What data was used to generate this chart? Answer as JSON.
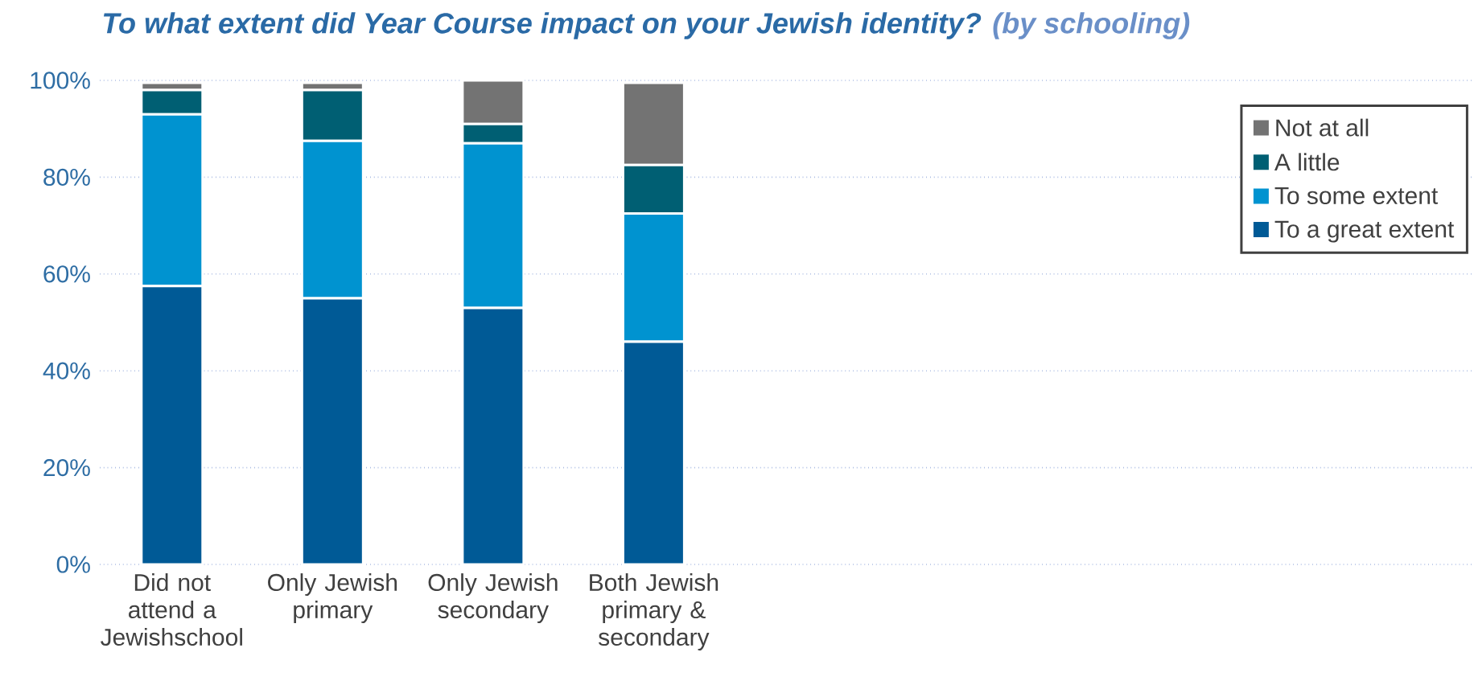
{
  "chart_data": {
    "type": "bar",
    "stacked": true,
    "title": "To what extent did Year Course impact on your Jewish identity?",
    "subtitle": "(by schooling)",
    "categories": [
      "Did not attend a Jewishschool",
      "Only Jewish primary",
      "Only Jewish secondary",
      "Both Jewish primary & secondary"
    ],
    "series": [
      {
        "name": "To a great extent",
        "color": "#005a96",
        "values": [
          57.5,
          55,
          53,
          46
        ]
      },
      {
        "name": "To some extent",
        "color": "#0093d0",
        "values": [
          35.5,
          32.5,
          34,
          26.5
        ]
      },
      {
        "name": "A little",
        "color": "#005f73",
        "values": [
          5,
          10.5,
          4,
          10
        ]
      },
      {
        "name": "Not at all",
        "color": "#737373",
        "values": [
          1.5,
          1.5,
          9,
          17
        ]
      }
    ],
    "ylim": [
      0,
      100
    ],
    "yticks": [
      {
        "value": 0,
        "label": "0%"
      },
      {
        "value": 20,
        "label": "20%"
      },
      {
        "value": 40,
        "label": "40%"
      },
      {
        "value": 60,
        "label": "60%"
      },
      {
        "value": 80,
        "label": "80%"
      },
      {
        "value": 100,
        "label": "100%"
      }
    ],
    "grid": "y",
    "legend": "top right"
  }
}
